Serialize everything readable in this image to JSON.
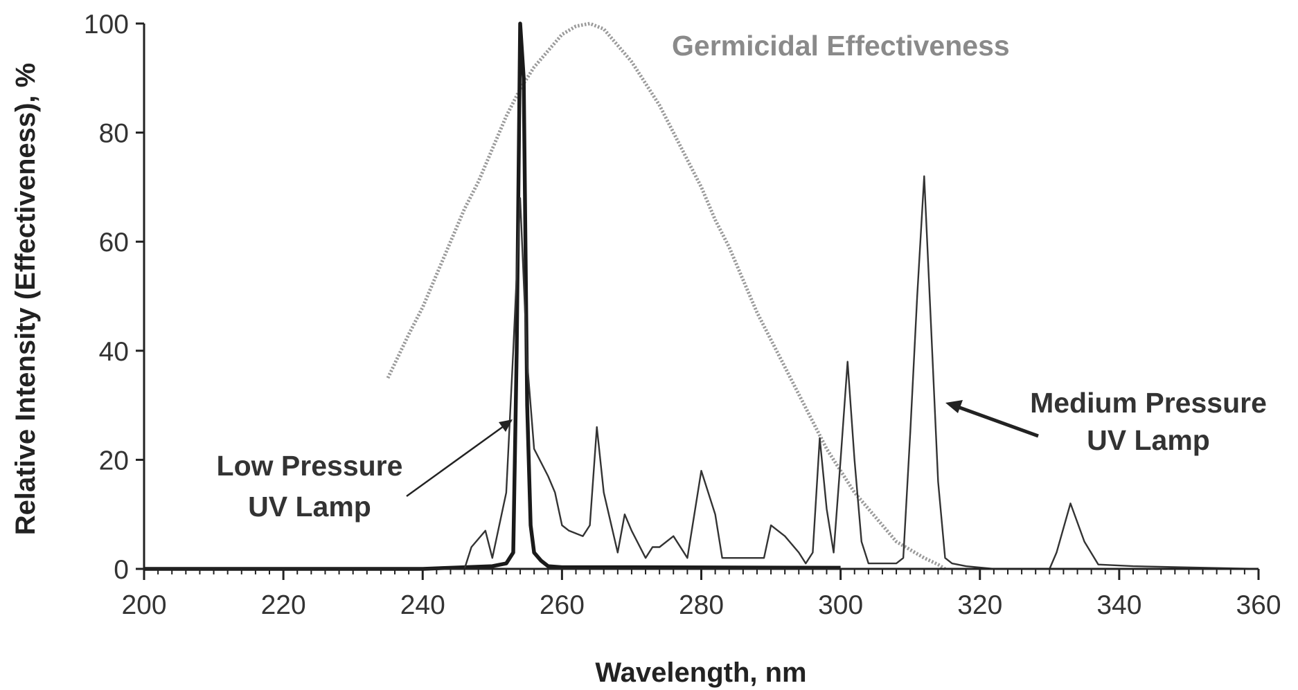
{
  "chart_data": {
    "type": "line",
    "xlabel": "Wavelength, nm",
    "ylabel": "Relative Intensity (Effectiveness), %",
    "xlim": [
      200,
      360
    ],
    "ylim": [
      0,
      100
    ],
    "xticks": [
      200,
      220,
      240,
      260,
      280,
      300,
      320,
      340,
      360
    ],
    "yticks": [
      0,
      20,
      40,
      60,
      80,
      100
    ],
    "grid": false,
    "legend": "none",
    "series": [
      {
        "name": "Germicidal Effectiveness",
        "style": "dotted",
        "color": "#9a9a9a",
        "x": [
          235,
          238,
          240,
          242,
          244,
          246,
          248,
          250,
          252,
          254,
          256,
          258,
          260,
          262,
          264,
          266,
          268,
          270,
          272,
          274,
          276,
          278,
          280,
          282,
          284,
          286,
          288,
          290,
          292,
          294,
          296,
          298,
          300,
          302,
          304,
          306,
          308,
          310,
          312,
          314,
          315
        ],
        "y": [
          35,
          43,
          48,
          54,
          60,
          66,
          71,
          77,
          83,
          88,
          92,
          95,
          98,
          99.5,
          100,
          99,
          96,
          93,
          89,
          85,
          80,
          75,
          70,
          64,
          59,
          53,
          47,
          42,
          37,
          32,
          27,
          22,
          18,
          14,
          11,
          8,
          5,
          3.5,
          2,
          0.8,
          0
        ]
      },
      {
        "name": "Low Pressure UV Lamp",
        "style": "bold",
        "color": "#1a1a1a",
        "x": [
          200,
          240,
          250,
          252,
          253,
          253.5,
          254,
          254.5,
          255,
          255.5,
          256,
          257,
          258,
          260,
          270,
          300
        ],
        "y": [
          0,
          0,
          0.5,
          1,
          3,
          40,
          100,
          90,
          30,
          8,
          3,
          1.5,
          0.5,
          0.3,
          0.3,
          0.2
        ]
      },
      {
        "name": "Medium Pressure UV Lamp",
        "style": "thin",
        "color": "#333333",
        "x": [
          200,
          246,
          247,
          249,
          250,
          252,
          253,
          254,
          255,
          256,
          258,
          259,
          260,
          261,
          263,
          264,
          265,
          266,
          268,
          269,
          270,
          272,
          273,
          274,
          276,
          278,
          280,
          282,
          283,
          285,
          287,
          289,
          290,
          292,
          294,
          295,
          296,
          297,
          298,
          299,
          300,
          301,
          302,
          303,
          304,
          306,
          308,
          309,
          310,
          311,
          312,
          313,
          314,
          315,
          316,
          318,
          322,
          330,
          331,
          333,
          335,
          337,
          342,
          360
        ],
        "y": [
          0,
          0,
          4,
          7,
          2,
          14,
          40,
          68,
          38,
          22,
          17,
          14,
          8,
          7,
          6,
          8,
          26,
          14,
          3,
          10,
          7,
          2,
          4,
          4,
          6,
          2,
          18,
          10,
          2,
          2,
          2,
          2,
          8,
          6,
          3,
          1,
          3,
          24,
          11,
          3,
          20,
          38,
          20,
          5,
          1,
          1,
          1,
          2,
          25,
          50,
          72,
          44,
          16,
          2,
          1,
          0.5,
          0,
          0,
          3,
          12,
          5,
          0.8,
          0.5,
          0
        ]
      }
    ],
    "annotations": [
      {
        "id": "germicidal",
        "lines": [
          "Germicidal Effectiveness"
        ]
      },
      {
        "id": "low",
        "lines": [
          "Low Pressure",
          "UV Lamp"
        ]
      },
      {
        "id": "medium",
        "lines": [
          "Medium Pressure",
          "UV Lamp"
        ]
      }
    ]
  }
}
